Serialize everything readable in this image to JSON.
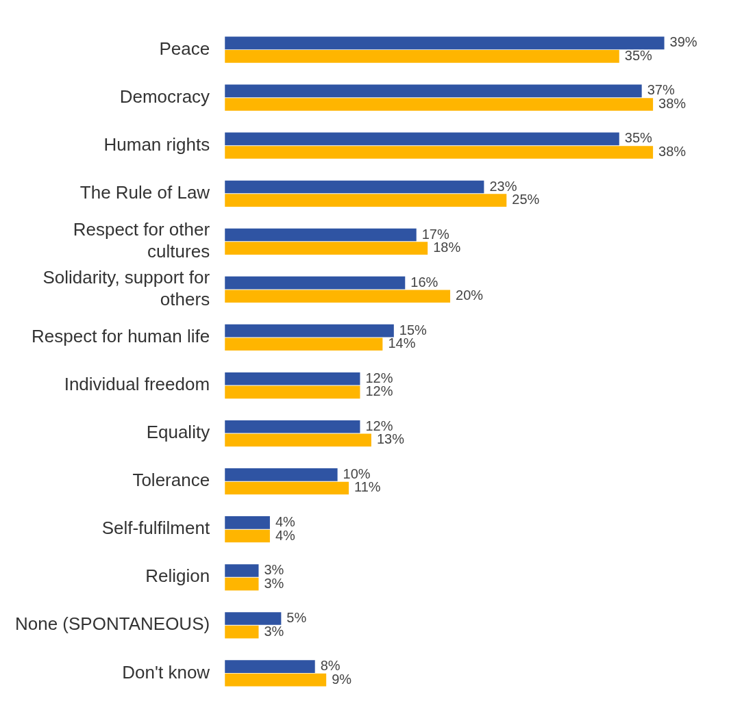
{
  "chart_data": {
    "type": "bar",
    "orientation": "horizontal",
    "categories": [
      "Peace",
      "Democracy",
      "Human rights",
      "The Rule of Law",
      "Respect for other cultures",
      "Solidarity, support for others",
      "Respect for human life",
      "Individual freedom",
      "Equality",
      "Tolerance",
      "Self-fulfilment",
      "Religion",
      "None (SPONTANEOUS)",
      "Don't know"
    ],
    "series": [
      {
        "color": "#2f54a3",
        "values": [
          39,
          37,
          35,
          23,
          17,
          16,
          15,
          12,
          12,
          10,
          4,
          3,
          5,
          8
        ],
        "value_labels": [
          "39%",
          "37%",
          "35%",
          "23%",
          "17%",
          "16%",
          "15%",
          "12%",
          "12%",
          "10%",
          "4%",
          "3%",
          "5%",
          "8%"
        ]
      },
      {
        "color": "#ffb500",
        "values": [
          35,
          38,
          38,
          25,
          18,
          20,
          14,
          12,
          13,
          11,
          4,
          3,
          3,
          9
        ],
        "value_labels": [
          "35%",
          "38%",
          "38%",
          "25%",
          "18%",
          "20%",
          "14%",
          "12%",
          "13%",
          "11%",
          "4%",
          "3%",
          "3%",
          "9%"
        ]
      }
    ],
    "legend": false
  }
}
